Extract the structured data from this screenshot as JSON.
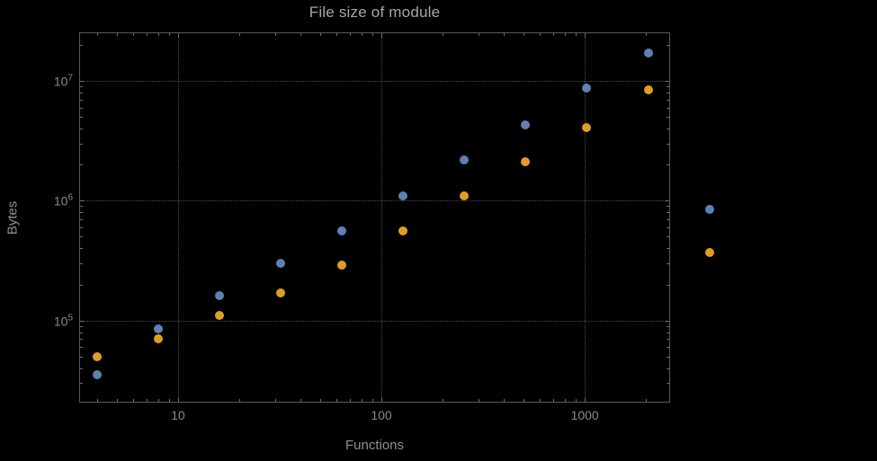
{
  "chart_data": {
    "type": "scatter",
    "title": "File size of module",
    "xlabel": "Functions",
    "ylabel": "Bytes",
    "xscale": "log",
    "yscale": "log",
    "xlim": [
      3.3,
      2600
    ],
    "ylim": [
      21000,
      25000000
    ],
    "grid": true,
    "legend": "none",
    "x": [
      4,
      8,
      16,
      32,
      64,
      128,
      256,
      512,
      1024,
      2048,
      4096
    ],
    "series": [
      {
        "name": "series-1-blue",
        "color": "#5e81b5",
        "values": [
          35000,
          85000,
          160000,
          300000,
          560000,
          1100000,
          2200000,
          4300000,
          8700000,
          17000000,
          850000
        ]
      },
      {
        "name": "series-2-orange",
        "color": "#e19c24",
        "values": [
          50000,
          70000,
          110000,
          170000,
          290000,
          560000,
          1100000,
          2100000,
          4100000,
          8400000,
          370000
        ]
      }
    ],
    "x_ticks": [
      {
        "value": 10,
        "label": "10"
      },
      {
        "value": 100,
        "label": "100"
      },
      {
        "value": 1000,
        "label": "1000"
      }
    ],
    "y_ticks": [
      {
        "value": 100000,
        "base": "10",
        "exp": "5"
      },
      {
        "value": 1000000,
        "base": "10",
        "exp": "6"
      },
      {
        "value": 10000000,
        "base": "10",
        "exp": "7"
      }
    ],
    "colors": {
      "background": "#000000",
      "frame": "#5a5a5a",
      "grid": "#4e4e4e",
      "text": "#8a8a8a"
    }
  }
}
